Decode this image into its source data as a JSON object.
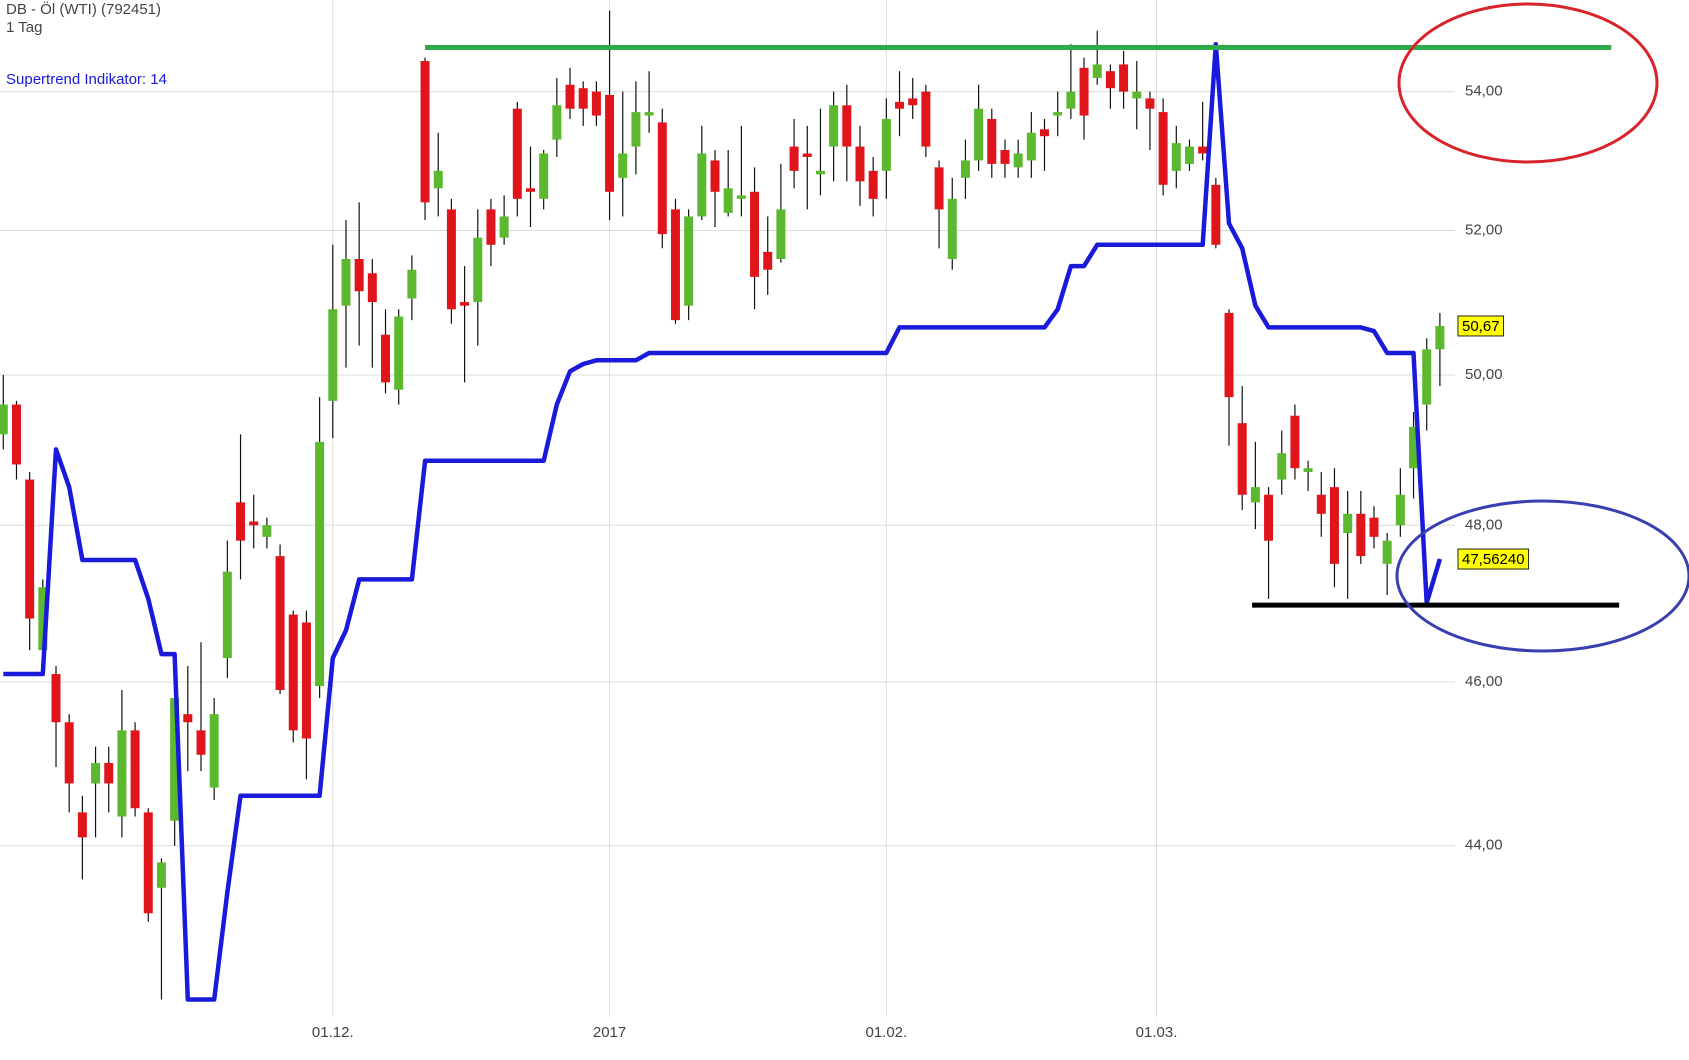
{
  "chart_data": {
    "type": "candlestick",
    "title": "DB - Öl (WTI) (792451)",
    "subtitle": "1 Tag",
    "log_scale": true,
    "grid": true,
    "ylim": [
      42,
      55.36
    ],
    "yticks": [
      {
        "value": 44,
        "label": "44,00"
      },
      {
        "value": 46,
        "label": "46,00"
      },
      {
        "value": 48,
        "label": "48,00"
      },
      {
        "value": 50,
        "label": "50,00"
      },
      {
        "value": 52,
        "label": "52,00"
      },
      {
        "value": 54,
        "label": "54,00"
      }
    ],
    "xlim": [
      -0.25,
      127.9
    ],
    "xticks": [
      {
        "value": 25,
        "label": "01.12."
      },
      {
        "value": 46,
        "label": "2017"
      },
      {
        "value": 67,
        "label": "01.02."
      },
      {
        "value": 87.5,
        "label": "01.03."
      }
    ],
    "series": [
      {
        "type": "candlestick",
        "up_color": "#5cb82e",
        "down_color": "#e0151c",
        "open": [
          49.2,
          49.6,
          48.6,
          46.4,
          46.1,
          45.5,
          44.4,
          44.75,
          45.0,
          44.35,
          45.4,
          44.4,
          43.5,
          44.3,
          45.6,
          45.4,
          44.7,
          46.3,
          48.3,
          48.05,
          47.85,
          47.6,
          46.85,
          46.75,
          45.95,
          49.65,
          50.95,
          51.6,
          51.4,
          50.55,
          49.8,
          51.05,
          54.45,
          52.6,
          52.3,
          51.0,
          51.0,
          52.3,
          51.9,
          53.75,
          52.6,
          52.45,
          53.3,
          54.1,
          54.05,
          54.0,
          53.95,
          52.75,
          53.2,
          53.65,
          53.55,
          52.3,
          50.95,
          52.2,
          53.0,
          52.25,
          52.45,
          52.55,
          51.7,
          51.6,
          53.2,
          53.1,
          52.8,
          53.2,
          53.8,
          53.2,
          52.85,
          52.85,
          53.85,
          53.9,
          54.0,
          52.9,
          51.6,
          52.75,
          53.0,
          53.6,
          53.15,
          52.9,
          53.0,
          53.45,
          53.65,
          53.75,
          54.35,
          54.2,
          54.3,
          54.4,
          53.9,
          53.9,
          53.7,
          52.85,
          52.95,
          53.2,
          52.65,
          50.85,
          49.35,
          48.3,
          48.4,
          48.6,
          49.45,
          48.7,
          48.4,
          48.5,
          47.9,
          48.15,
          48.1,
          47.5,
          48.0,
          48.75,
          49.6,
          50.35
        ],
        "high": [
          50.0,
          49.65,
          48.7,
          47.3,
          46.2,
          45.6,
          44.6,
          45.2,
          45.2,
          45.9,
          45.5,
          44.45,
          43.85,
          45.85,
          46.2,
          46.5,
          45.8,
          47.8,
          49.2,
          48.4,
          48.1,
          47.75,
          46.9,
          46.9,
          49.7,
          51.8,
          52.15,
          52.4,
          51.6,
          50.9,
          50.9,
          51.65,
          54.5,
          53.4,
          52.45,
          51.5,
          52.3,
          52.45,
          52.5,
          53.85,
          53.2,
          53.15,
          54.2,
          54.35,
          54.15,
          54.15,
          55.2,
          54.0,
          54.15,
          54.3,
          53.75,
          52.45,
          52.3,
          53.5,
          53.15,
          53.15,
          53.5,
          52.9,
          52.2,
          52.95,
          53.6,
          53.5,
          53.75,
          54.0,
          54.1,
          53.5,
          53.05,
          53.9,
          54.3,
          54.2,
          54.1,
          53.0,
          52.75,
          53.3,
          54.1,
          53.75,
          53.3,
          53.3,
          53.7,
          53.6,
          54.0,
          54.7,
          54.5,
          54.9,
          54.4,
          54.6,
          54.45,
          54.0,
          53.9,
          53.5,
          53.3,
          53.85,
          52.75,
          50.9,
          49.85,
          49.1,
          48.5,
          49.25,
          49.6,
          48.85,
          48.7,
          48.75,
          48.45,
          48.45,
          48.25,
          47.9,
          48.75,
          49.5,
          50.5,
          50.85
        ],
        "low": [
          49.0,
          48.6,
          46.4,
          46.3,
          44.95,
          44.4,
          43.6,
          44.1,
          44.4,
          44.1,
          44.35,
          43.1,
          42.2,
          44.0,
          44.9,
          44.9,
          44.55,
          46.05,
          47.3,
          47.7,
          47.7,
          45.85,
          45.25,
          44.8,
          45.8,
          49.15,
          50.1,
          50.4,
          50.1,
          49.75,
          49.6,
          50.75,
          52.15,
          52.2,
          50.7,
          49.9,
          50.4,
          51.5,
          51.8,
          52.2,
          52.05,
          52.3,
          53.05,
          53.6,
          53.5,
          53.5,
          52.15,
          52.2,
          52.8,
          53.4,
          51.75,
          50.7,
          50.75,
          52.15,
          52.05,
          52.2,
          52.2,
          50.9,
          51.1,
          51.55,
          52.6,
          52.3,
          52.5,
          52.7,
          52.7,
          52.35,
          52.2,
          52.45,
          53.35,
          53.6,
          53.05,
          51.75,
          51.45,
          52.45,
          52.85,
          52.75,
          52.75,
          52.75,
          52.75,
          52.85,
          53.35,
          53.6,
          53.3,
          54.1,
          53.75,
          53.75,
          53.45,
          53.15,
          52.5,
          52.6,
          52.85,
          53.0,
          51.75,
          49.05,
          48.2,
          47.95,
          47.05,
          48.4,
          48.6,
          48.45,
          47.85,
          47.2,
          47.05,
          47.5,
          47.7,
          47.1,
          47.85,
          48.35,
          49.25,
          49.85
        ],
        "close": [
          49.6,
          48.8,
          46.8,
          47.2,
          45.5,
          44.75,
          44.1,
          45.0,
          44.75,
          45.4,
          44.45,
          43.2,
          43.8,
          45.8,
          45.5,
          45.1,
          45.6,
          47.4,
          47.8,
          48.0,
          48.0,
          45.9,
          45.4,
          45.3,
          49.1,
          50.9,
          51.6,
          51.15,
          51.0,
          49.9,
          50.8,
          51.45,
          52.4,
          52.85,
          50.9,
          50.95,
          51.9,
          51.8,
          52.2,
          52.45,
          52.55,
          53.1,
          53.8,
          53.75,
          53.75,
          53.65,
          52.55,
          53.1,
          53.7,
          53.7,
          51.95,
          50.75,
          52.2,
          53.1,
          52.55,
          52.6,
          52.5,
          51.35,
          51.45,
          52.3,
          52.85,
          53.05,
          52.85,
          53.8,
          53.2,
          52.7,
          52.45,
          53.6,
          53.75,
          53.8,
          53.2,
          52.3,
          52.45,
          53.0,
          53.75,
          52.95,
          52.95,
          53.1,
          53.4,
          53.35,
          53.7,
          54.0,
          53.65,
          54.4,
          54.05,
          54.0,
          54.0,
          53.75,
          52.65,
          53.25,
          53.2,
          53.1,
          51.8,
          49.7,
          48.4,
          48.5,
          47.8,
          48.95,
          48.75,
          48.75,
          48.15,
          47.5,
          48.15,
          47.6,
          47.85,
          47.8,
          48.4,
          49.3,
          50.35,
          50.67
        ]
      },
      {
        "type": "line",
        "name": "Supertrend Indikator: 14",
        "color": "#1a1adb",
        "values": [
          46.1,
          46.1,
          46.1,
          46.1,
          49.0,
          48.5,
          47.55,
          47.55,
          47.55,
          47.55,
          47.55,
          47.05,
          46.35,
          46.35,
          42.2,
          42.2,
          42.2,
          43.45,
          44.6,
          44.6,
          44.6,
          44.6,
          44.6,
          44.6,
          44.6,
          46.3,
          46.65,
          47.3,
          47.3,
          47.3,
          47.3,
          47.3,
          48.85,
          48.85,
          48.85,
          48.85,
          48.85,
          48.85,
          48.85,
          48.85,
          48.85,
          48.85,
          49.6,
          50.05,
          50.15,
          50.2,
          50.2,
          50.2,
          50.2,
          50.3,
          50.3,
          50.3,
          50.3,
          50.3,
          50.3,
          50.3,
          50.3,
          50.3,
          50.3,
          50.3,
          50.3,
          50.3,
          50.3,
          50.3,
          50.3,
          50.3,
          50.3,
          50.3,
          50.65,
          50.65,
          50.65,
          50.65,
          50.65,
          50.65,
          50.65,
          50.65,
          50.65,
          50.65,
          50.65,
          50.65,
          50.9,
          51.5,
          51.5,
          51.8,
          51.8,
          51.8,
          51.8,
          51.8,
          51.8,
          51.8,
          51.8,
          51.8,
          54.7,
          52.1,
          51.75,
          50.95,
          50.65,
          50.65,
          50.65,
          50.65,
          50.65,
          50.65,
          50.65,
          50.65,
          50.6,
          50.3,
          50.3,
          50.3,
          47.0,
          47.5624
        ]
      }
    ],
    "annotation_lines": [
      {
        "value": 54.65,
        "x": [
          32,
          122
        ],
        "color": "#2eaa4a"
      },
      {
        "value": 46.97,
        "x": [
          94.75,
          122.6
        ],
        "color": "#000000"
      }
    ],
    "price_tag_color": "#ffff00",
    "price_tags": [
      {
        "value": 50.67,
        "label": "50,67"
      },
      {
        "value": 47.5624,
        "label": "47,56240"
      }
    ]
  }
}
